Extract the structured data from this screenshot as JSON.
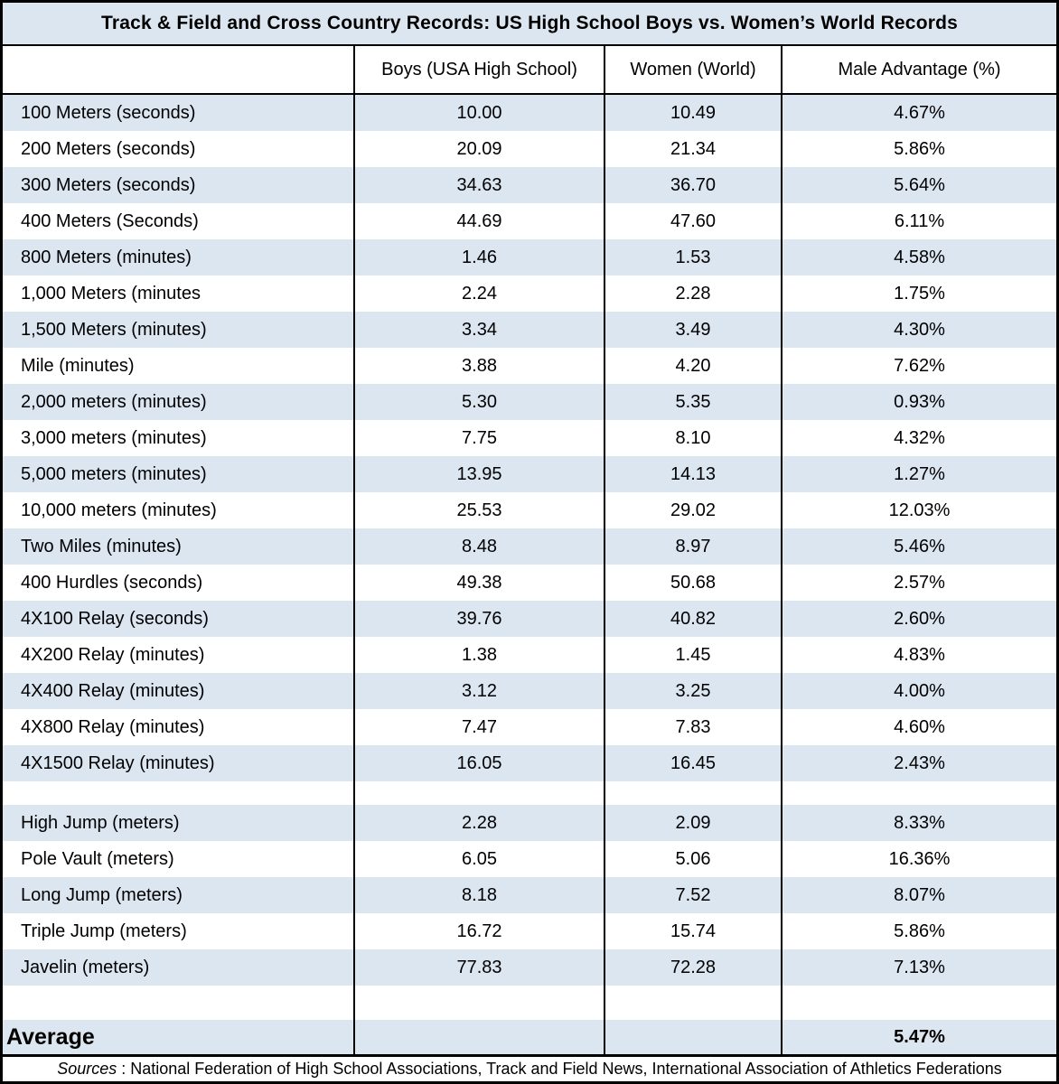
{
  "colors": {
    "band_blue": "#dce6f1",
    "border_black": "#000000",
    "background_white": "#ffffff"
  },
  "chart_data": {
    "type": "table",
    "title": "Track & Field and Cross Country Records: US High School Boys vs. Women’s World Records",
    "columns": [
      "",
      "Boys (USA High School)",
      "Women (World)",
      "Male Advantage (%)"
    ],
    "rows": [
      {
        "event": "100 Meters (seconds)",
        "boys": "10.00",
        "women": "10.49",
        "advantage": "4.67%"
      },
      {
        "event": "200 Meters (seconds)",
        "boys": "20.09",
        "women": "21.34",
        "advantage": "5.86%"
      },
      {
        "event": "300 Meters (seconds)",
        "boys": "34.63",
        "women": "36.70",
        "advantage": "5.64%"
      },
      {
        "event": "400 Meters (Seconds)",
        "boys": "44.69",
        "women": "47.60",
        "advantage": "6.11%"
      },
      {
        "event": "800 Meters (minutes)",
        "boys": "1.46",
        "women": "1.53",
        "advantage": "4.58%"
      },
      {
        "event": "1,000 Meters (minutes",
        "boys": "2.24",
        "women": "2.28",
        "advantage": "1.75%"
      },
      {
        "event": "1,500 Meters (minutes)",
        "boys": "3.34",
        "women": "3.49",
        "advantage": "4.30%"
      },
      {
        "event": "Mile (minutes)",
        "boys": "3.88",
        "women": "4.20",
        "advantage": "7.62%"
      },
      {
        "event": "2,000 meters (minutes)",
        "boys": "5.30",
        "women": "5.35",
        "advantage": "0.93%"
      },
      {
        "event": "3,000 meters (minutes)",
        "boys": "7.75",
        "women": "8.10",
        "advantage": "4.32%"
      },
      {
        "event": "5,000 meters (minutes)",
        "boys": "13.95",
        "women": "14.13",
        "advantage": "1.27%"
      },
      {
        "event": "10,000 meters (minutes)",
        "boys": "25.53",
        "women": "29.02",
        "advantage": "12.03%"
      },
      {
        "event": "Two Miles (minutes)",
        "boys": "8.48",
        "women": "8.97",
        "advantage": "5.46%"
      },
      {
        "event": "400 Hurdles (seconds)",
        "boys": "49.38",
        "women": "50.68",
        "advantage": "2.57%"
      },
      {
        "event": "4X100 Relay (seconds)",
        "boys": "39.76",
        "women": "40.82",
        "advantage": "2.60%"
      },
      {
        "event": "4X200 Relay (minutes)",
        "boys": "1.38",
        "women": "1.45",
        "advantage": "4.83%"
      },
      {
        "event": "4X400 Relay (minutes)",
        "boys": "3.12",
        "women": "3.25",
        "advantage": "4.00%"
      },
      {
        "event": "4X800 Relay (minutes)",
        "boys": "7.47",
        "women": "7.83",
        "advantage": "4.60%"
      },
      {
        "event": "4X1500 Relay (minutes)",
        "boys": "16.05",
        "women": "16.45",
        "advantage": "2.43%"
      },
      {
        "event": "",
        "boys": "",
        "women": "",
        "advantage": "",
        "spacer": "small"
      },
      {
        "event": "High Jump (meters)",
        "boys": "2.28",
        "women": "2.09",
        "advantage": "8.33%"
      },
      {
        "event": "Pole Vault (meters)",
        "boys": "6.05",
        "women": "5.06",
        "advantage": "16.36%"
      },
      {
        "event": "Long Jump (meters)",
        "boys": "8.18",
        "women": "7.52",
        "advantage": "8.07%"
      },
      {
        "event": "Triple Jump (meters)",
        "boys": "16.72",
        "women": "15.74",
        "advantage": "5.86%"
      },
      {
        "event": "Javelin (meters)",
        "boys": "77.83",
        "women": "72.28",
        "advantage": "7.13%"
      },
      {
        "event": "",
        "boys": "",
        "women": "",
        "advantage": "",
        "spacer": "large"
      }
    ],
    "summary_row": {
      "label": "Average",
      "boys": "",
      "women": "",
      "advantage": "5.47%"
    },
    "footnote": "Sources: National Federation of High School Associations, Track and Field News, International Association of Athletics Federations"
  },
  "footer": {
    "sources_label": "Sources",
    "sources_rest": ": National Federation of High School Associations, Track and Field News, International Association of Athletics Federations"
  }
}
